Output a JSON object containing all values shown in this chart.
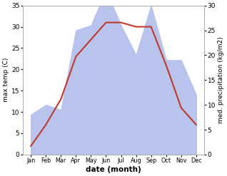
{
  "months": [
    "Jan",
    "Feb",
    "Mar",
    "Apr",
    "May",
    "Jun",
    "Jul",
    "Aug",
    "Sep",
    "Oct",
    "Nov",
    "Dec"
  ],
  "temperature": [
    2,
    7,
    13,
    23,
    27,
    31,
    31,
    30,
    30,
    21,
    11,
    7
  ],
  "precipitation": [
    8,
    10,
    9,
    25,
    26,
    33,
    26,
    20,
    30,
    19,
    19,
    12
  ],
  "temp_color": "#c0392b",
  "precip_color": "#b8c4ee",
  "temp_ylim": [
    0,
    35
  ],
  "precip_ylim": [
    0,
    30
  ],
  "temp_yticks": [
    0,
    5,
    10,
    15,
    20,
    25,
    30,
    35
  ],
  "precip_yticks": [
    0,
    5,
    10,
    15,
    20,
    25,
    30
  ],
  "xlabel": "date (month)",
  "ylabel_left": "max temp (C)",
  "ylabel_right": "med. precipitation (kg/m2)",
  "background_color": "#ffffff"
}
